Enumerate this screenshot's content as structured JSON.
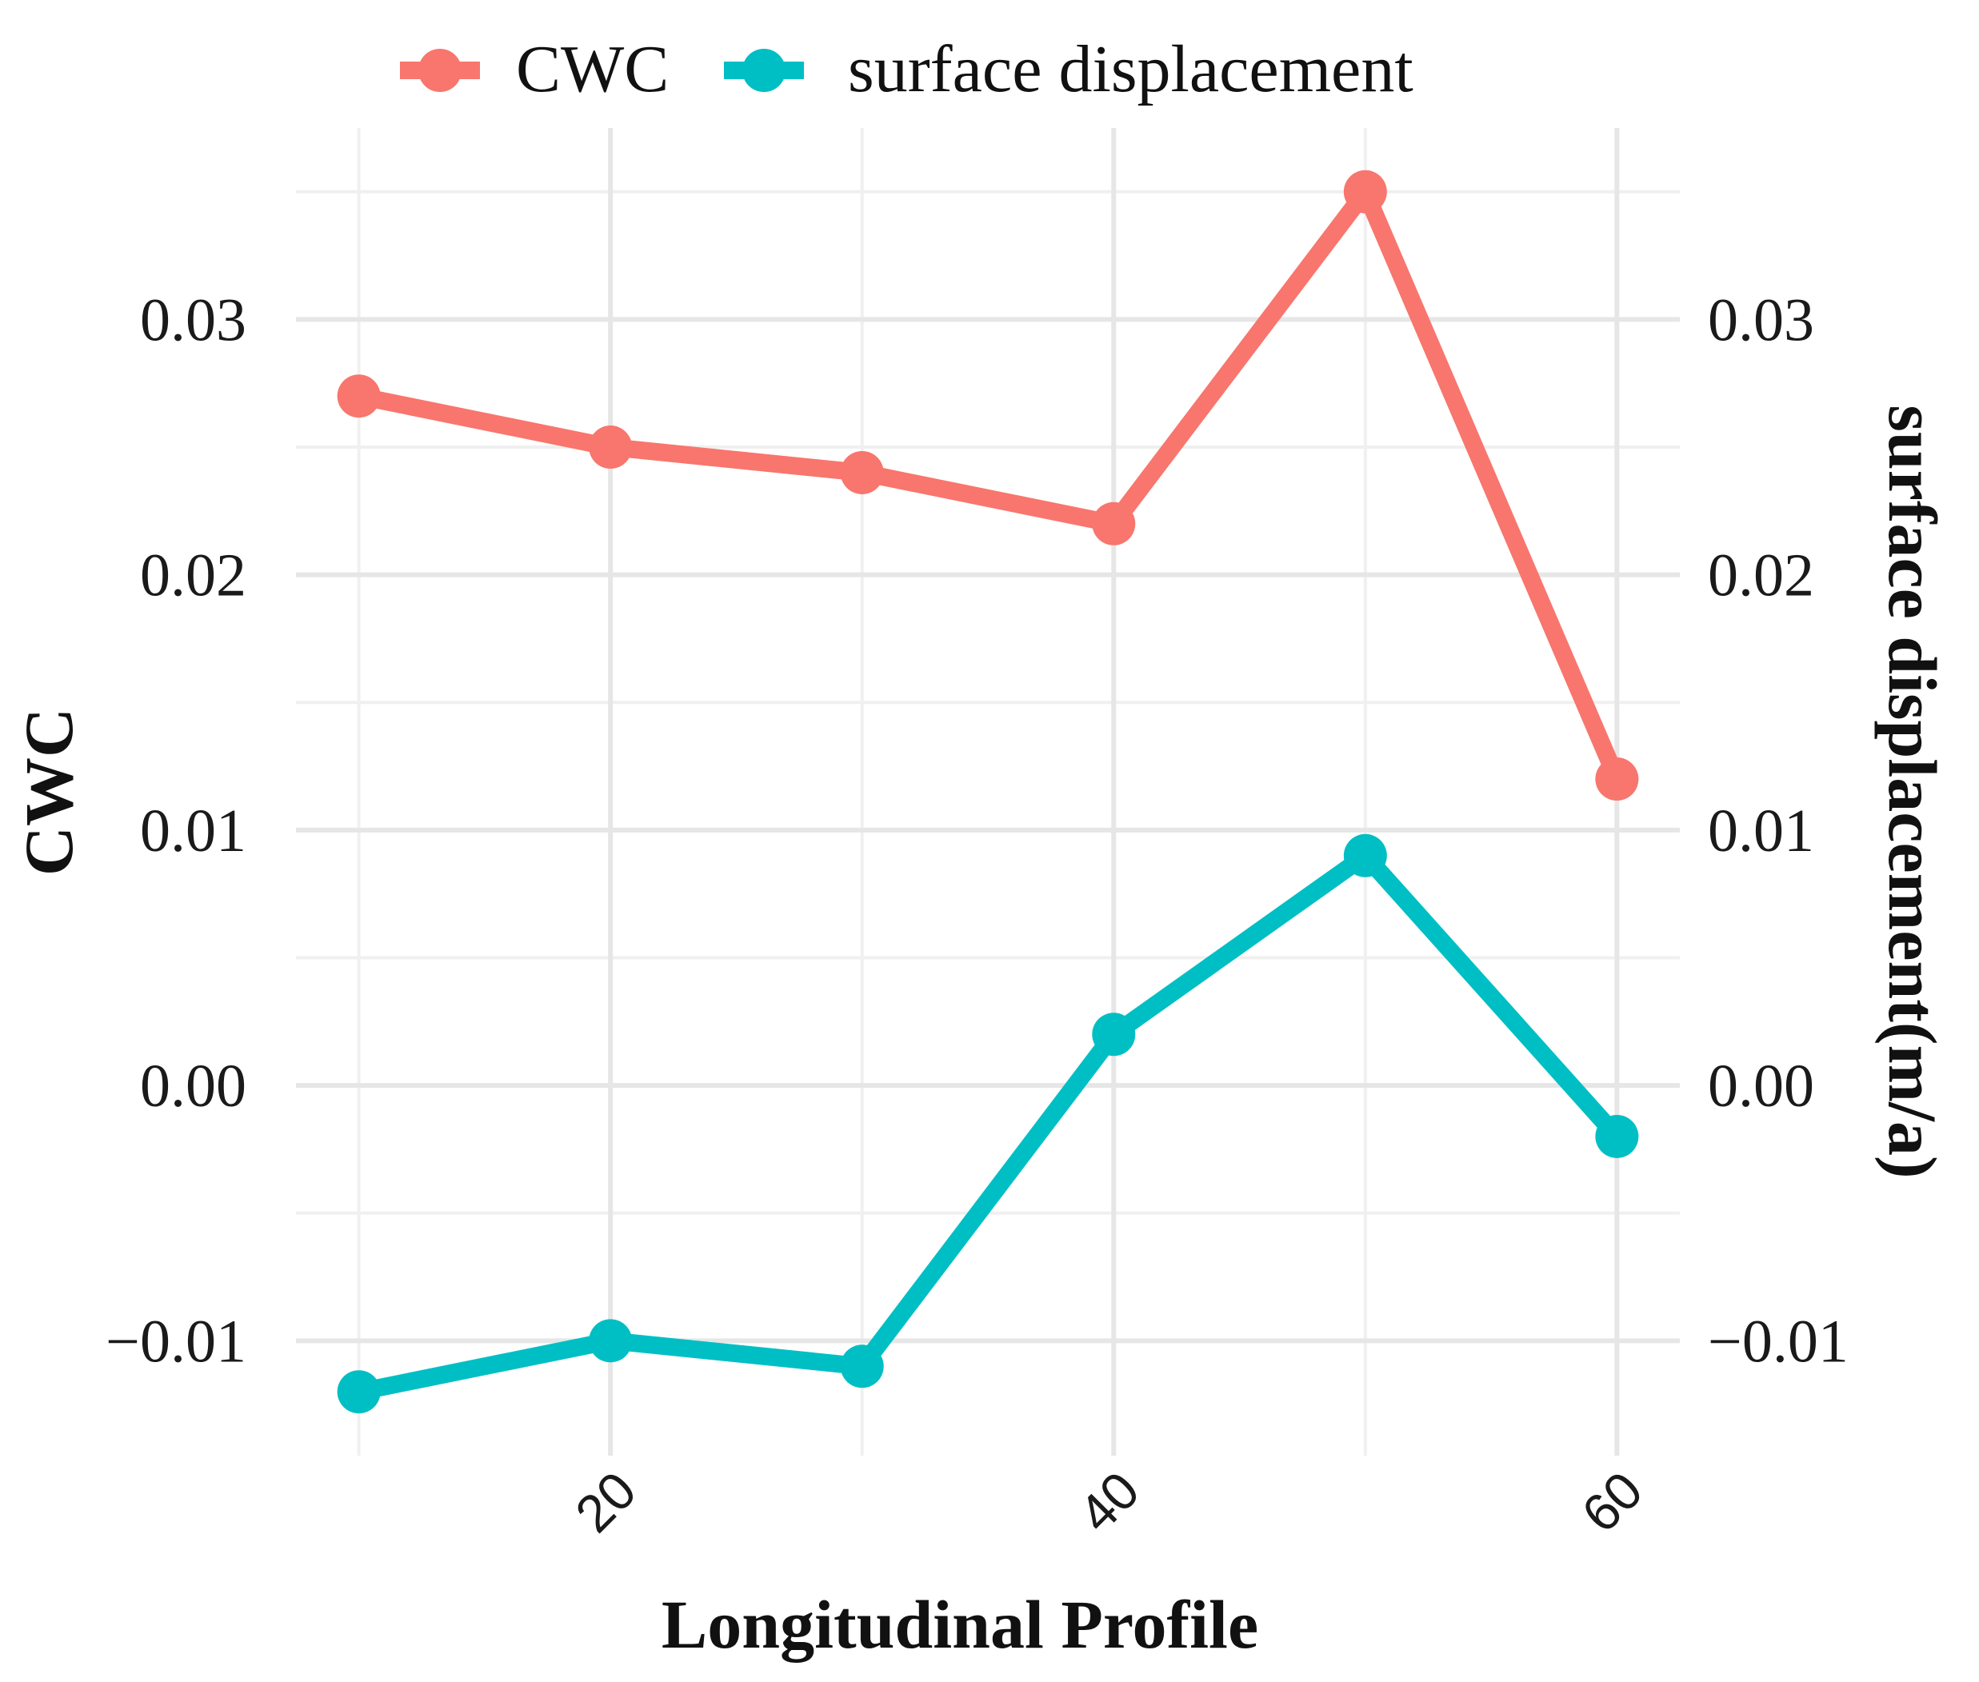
{
  "chart_data": {
    "type": "line",
    "xlabel": "Longitudinal Profile",
    "ylabel_left": "CWC",
    "ylabel_right": "surface displacement(m/a)",
    "x": [
      10,
      20,
      30,
      40,
      50,
      60
    ],
    "x_ticks": [
      20,
      40,
      60
    ],
    "x_tick_labels": [
      "20",
      "40",
      "60"
    ],
    "xlim": [
      7.5,
      62.5
    ],
    "ylim": [
      -0.0145,
      0.0375
    ],
    "y_ticks": [
      -0.01,
      0.0,
      0.01,
      0.02,
      0.03
    ],
    "y_tick_labels": [
      "−0.01",
      "0.00",
      "0.01",
      "0.02",
      "0.03"
    ],
    "y_ticks_right": [
      -0.01,
      0.0,
      0.01,
      0.02,
      0.03
    ],
    "y_tick_labels_right": [
      "−0.01",
      "0.00",
      "0.01",
      "0.02",
      "0.03"
    ],
    "grid": true,
    "legend_position": "top",
    "series": [
      {
        "name": "CWC",
        "color": "#F8766D",
        "values": [
          0.027,
          0.025,
          0.024,
          0.022,
          0.035,
          0.012
        ]
      },
      {
        "name": "surface displacement",
        "color": "#00BFC4",
        "values": [
          -0.012,
          -0.01,
          -0.011,
          0.002,
          0.009,
          -0.002
        ]
      }
    ]
  }
}
